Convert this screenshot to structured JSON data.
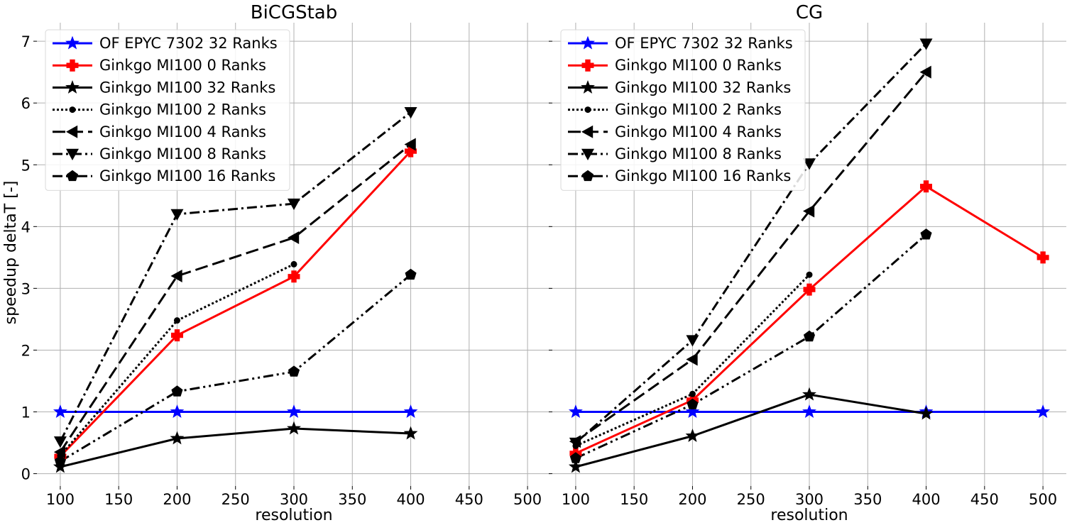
{
  "figure": {
    "ylabel": "speedup deltaT [-]"
  },
  "chart_data": [
    {
      "type": "line",
      "title": "BiCGStab",
      "xlabel": "resolution",
      "ylabel": "speedup deltaT [-]",
      "xlim": [
        80,
        520
      ],
      "ylim": [
        -0.2,
        7.3
      ],
      "xticks": [
        100,
        150,
        200,
        250,
        300,
        350,
        400,
        450,
        500
      ],
      "yticks": [
        0,
        1,
        2,
        3,
        4,
        5,
        6,
        7
      ],
      "grid": true,
      "legend_position": "top-left",
      "series": [
        {
          "name": "OF EPYC 7302 32 Ranks",
          "color": "#0000ff",
          "linestyle": "solid",
          "marker": "star",
          "x": [
            100,
            200,
            300,
            400
          ],
          "y": [
            1.0,
            1.0,
            1.0,
            1.0
          ]
        },
        {
          "name": "Ginkgo MI100 0 Ranks",
          "color": "#ff0000",
          "linestyle": "solid",
          "marker": "plus",
          "x": [
            100,
            200,
            300,
            400
          ],
          "y": [
            0.28,
            2.24,
            3.19,
            5.22
          ]
        },
        {
          "name": "Ginkgo MI100 32 Ranks",
          "color": "#000000",
          "linestyle": "solid",
          "marker": "star",
          "x": [
            100,
            200,
            300,
            400
          ],
          "y": [
            0.11,
            0.57,
            0.73,
            0.65
          ]
        },
        {
          "name": "Ginkgo MI100 2 Ranks",
          "color": "#000000",
          "linestyle": "dotted",
          "marker": "circle",
          "x": [
            100,
            200,
            300
          ],
          "y": [
            0.29,
            2.48,
            3.39
          ]
        },
        {
          "name": "Ginkgo MI100 4 Ranks",
          "color": "#000000",
          "linestyle": "dashed",
          "marker": "triangle-left",
          "x": [
            100,
            200,
            300,
            400
          ],
          "y": [
            0.35,
            3.2,
            3.82,
            5.33
          ]
        },
        {
          "name": "Ginkgo MI100 8 Ranks",
          "color": "#000000",
          "linestyle": "dashdot",
          "marker": "triangle-down",
          "x": [
            100,
            200,
            300,
            400
          ],
          "y": [
            0.52,
            4.2,
            4.37,
            5.85
          ]
        },
        {
          "name": "Ginkgo MI100 16 Ranks",
          "color": "#000000",
          "linestyle": "dashdotdot",
          "marker": "pentagon",
          "x": [
            100,
            200,
            300,
            400
          ],
          "y": [
            0.2,
            1.33,
            1.65,
            3.22
          ]
        }
      ]
    },
    {
      "type": "line",
      "title": "CG",
      "xlabel": "resolution",
      "ylabel": "",
      "xlim": [
        80,
        520
      ],
      "ylim": [
        -0.2,
        7.3
      ],
      "xticks": [
        100,
        150,
        200,
        250,
        300,
        350,
        400,
        450,
        500
      ],
      "yticks": [
        0,
        1,
        2,
        3,
        4,
        5,
        6,
        7
      ],
      "grid": true,
      "legend_position": "top-left",
      "series": [
        {
          "name": "OF EPYC 7302 32 Ranks",
          "color": "#0000ff",
          "linestyle": "solid",
          "marker": "star",
          "x": [
            100,
            200,
            300,
            400,
            500
          ],
          "y": [
            1.0,
            1.0,
            1.0,
            1.0,
            1.0
          ]
        },
        {
          "name": "Ginkgo MI100 0 Ranks",
          "color": "#ff0000",
          "linestyle": "solid",
          "marker": "plus",
          "x": [
            100,
            200,
            300,
            400,
            500
          ],
          "y": [
            0.33,
            1.19,
            2.98,
            4.65,
            3.5
          ]
        },
        {
          "name": "Ginkgo MI100 32 Ranks",
          "color": "#000000",
          "linestyle": "solid",
          "marker": "star",
          "x": [
            100,
            200,
            300,
            400
          ],
          "y": [
            0.11,
            0.61,
            1.28,
            0.97
          ]
        },
        {
          "name": "Ginkgo MI100 2 Ranks",
          "color": "#000000",
          "linestyle": "dotted",
          "marker": "circle",
          "x": [
            100,
            200,
            300
          ],
          "y": [
            0.45,
            1.29,
            3.22
          ]
        },
        {
          "name": "Ginkgo MI100 4 Ranks",
          "color": "#000000",
          "linestyle": "dashed",
          "marker": "triangle-left",
          "x": [
            100,
            200,
            300,
            400
          ],
          "y": [
            0.52,
            1.85,
            4.25,
            6.5
          ]
        },
        {
          "name": "Ginkgo MI100 8 Ranks",
          "color": "#000000",
          "linestyle": "dashdot",
          "marker": "triangle-down",
          "x": [
            100,
            200,
            300,
            400
          ],
          "y": [
            0.5,
            2.16,
            5.02,
            6.96
          ]
        },
        {
          "name": "Ginkgo MI100 16 Ranks",
          "color": "#000000",
          "linestyle": "dashdotdot",
          "marker": "pentagon",
          "x": [
            100,
            200,
            300,
            400
          ],
          "y": [
            0.25,
            1.12,
            2.22,
            3.87
          ]
        }
      ]
    }
  ]
}
